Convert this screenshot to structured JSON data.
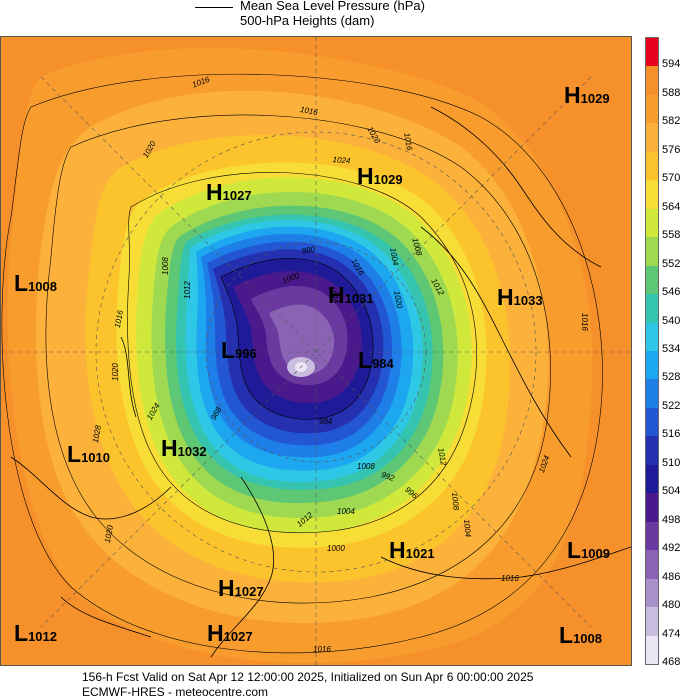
{
  "legend": {
    "line_label": "Mean Sea Level Pressure (hPa)",
    "fill_label": "500-hPa Heights (dam)"
  },
  "colorbar": {
    "levels": [
      "594",
      "588",
      "582",
      "576",
      "570",
      "564",
      "558",
      "552",
      "546",
      "540",
      "534",
      "528",
      "522",
      "516",
      "510",
      "504",
      "498",
      "492",
      "486",
      "480",
      "474",
      "468"
    ],
    "colors": [
      "#e8001e",
      "#f6902a",
      "#f99c2e",
      "#fbb13a",
      "#fcc42c",
      "#f7dd35",
      "#cfe83b",
      "#9fd951",
      "#5dc775",
      "#35c4b0",
      "#2ec8e6",
      "#1ca7f0",
      "#1f7fe8",
      "#2356d2",
      "#2530b0",
      "#1f1a97",
      "#4a1a8c",
      "#6b3aa0",
      "#8a63b4",
      "#a890c8",
      "#c9bde0",
      "#ebe6f4"
    ]
  },
  "annotations": [
    {
      "kind": "H",
      "value": "1029"
    },
    {
      "kind": "H",
      "value": "1027"
    },
    {
      "kind": "H",
      "value": "1029"
    },
    {
      "kind": "L",
      "value": "1008"
    },
    {
      "kind": "H",
      "value": "1033"
    },
    {
      "kind": "H",
      "value": "1031"
    },
    {
      "kind": "L",
      "value": "996"
    },
    {
      "kind": "L",
      "value": "984"
    },
    {
      "kind": "L",
      "value": "1010"
    },
    {
      "kind": "H",
      "value": "1032"
    },
    {
      "kind": "H",
      "value": "1021"
    },
    {
      "kind": "L",
      "value": "1009"
    },
    {
      "kind": "H",
      "value": "1027"
    },
    {
      "kind": "L",
      "value": "1012"
    },
    {
      "kind": "H",
      "value": "1027"
    },
    {
      "kind": "L",
      "value": "1008"
    }
  ],
  "isobar_labels": [
    "1016",
    "1020",
    "1016",
    "1024",
    "1020",
    "1016",
    "1012",
    "1008",
    "1004",
    "1008",
    "1012",
    "1016",
    "1020",
    "1024",
    "1028",
    "1024",
    "1020",
    "1016",
    "1012",
    "1008",
    "1004",
    "996",
    "992",
    "1000",
    "1004",
    "1008",
    "1012",
    "1016",
    "1016",
    "1020",
    "1024",
    "1016",
    "1000",
    "980",
    "984",
    "988"
  ],
  "footer": {
    "line1": "156-h Fcst Valid on Sat Apr 12 12:00:00 2025, Initialized on Sun Apr  6 00:00:00 2025",
    "line2": "ECMWF-HRES  - meteocentre.com"
  }
}
